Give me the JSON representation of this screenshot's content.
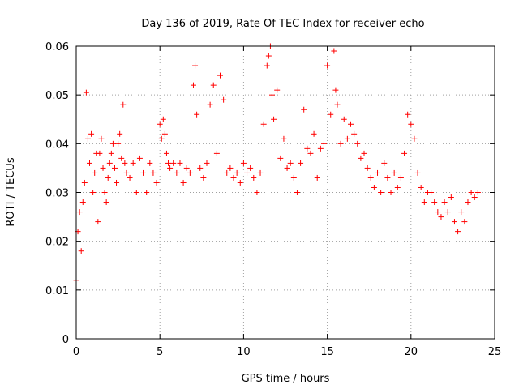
{
  "chart_data": {
    "type": "scatter",
    "title": "Day 136 of 2019, Rate Of TEC Index for receiver echo",
    "xlabel": "GPS time / hours",
    "ylabel": "ROTI / TECUs",
    "xlim": [
      0,
      25
    ],
    "ylim": [
      0,
      0.06
    ],
    "xticks": [
      "0",
      "5",
      "10",
      "15",
      "20",
      "25"
    ],
    "yticks": [
      "0",
      "0.01",
      "0.02",
      "0.03",
      "0.04",
      "0.05",
      "0.06"
    ],
    "grid": true,
    "marker": "+",
    "color": "#ff0000",
    "series": [
      {
        "name": "",
        "x": [
          0.0,
          0.1,
          0.2,
          0.3,
          0.4,
          0.5,
          0.6,
          0.7,
          0.8,
          0.9,
          1.0,
          1.1,
          1.2,
          1.3,
          1.4,
          1.5,
          1.6,
          1.7,
          1.8,
          1.9,
          2.0,
          2.1,
          2.2,
          2.3,
          2.4,
          2.5,
          2.6,
          2.7,
          2.8,
          2.9,
          3.0,
          3.2,
          3.4,
          3.6,
          3.8,
          4.0,
          4.2,
          4.4,
          4.6,
          4.8,
          5.0,
          5.1,
          5.2,
          5.3,
          5.4,
          5.5,
          5.6,
          5.8,
          6.0,
          6.2,
          6.4,
          6.6,
          6.8,
          7.0,
          7.1,
          7.2,
          7.4,
          7.6,
          7.8,
          8.0,
          8.2,
          8.4,
          8.6,
          8.8,
          9.0,
          9.2,
          9.4,
          9.6,
          9.8,
          10.0,
          10.2,
          10.4,
          10.6,
          10.8,
          11.0,
          11.2,
          11.4,
          11.5,
          11.6,
          11.7,
          11.8,
          12.0,
          12.2,
          12.4,
          12.6,
          12.8,
          13.0,
          13.2,
          13.4,
          13.6,
          13.8,
          14.0,
          14.2,
          14.4,
          14.6,
          14.8,
          15.0,
          15.2,
          15.4,
          15.5,
          15.6,
          15.8,
          16.0,
          16.2,
          16.4,
          16.6,
          16.8,
          17.0,
          17.2,
          17.4,
          17.6,
          17.8,
          18.0,
          18.2,
          18.4,
          18.6,
          18.8,
          19.0,
          19.2,
          19.4,
          19.6,
          19.8,
          20.0,
          20.2,
          20.4,
          20.6,
          20.8,
          21.0,
          21.2,
          21.4,
          21.6,
          21.8,
          22.0,
          22.2,
          22.4,
          22.6,
          22.8,
          23.0,
          23.2,
          23.4,
          23.6,
          23.8,
          24.0
        ],
        "y": [
          0.012,
          0.022,
          0.026,
          0.018,
          0.028,
          0.032,
          0.0505,
          0.041,
          0.036,
          0.042,
          0.03,
          0.034,
          0.038,
          0.024,
          0.038,
          0.041,
          0.035,
          0.03,
          0.028,
          0.033,
          0.036,
          0.038,
          0.04,
          0.035,
          0.032,
          0.04,
          0.042,
          0.037,
          0.048,
          0.036,
          0.034,
          0.033,
          0.036,
          0.03,
          0.037,
          0.034,
          0.03,
          0.036,
          0.034,
          0.032,
          0.044,
          0.041,
          0.045,
          0.042,
          0.038,
          0.036,
          0.035,
          0.036,
          0.034,
          0.036,
          0.032,
          0.035,
          0.034,
          0.052,
          0.056,
          0.046,
          0.035,
          0.033,
          0.036,
          0.048,
          0.052,
          0.038,
          0.054,
          0.049,
          0.034,
          0.035,
          0.033,
          0.034,
          0.032,
          0.036,
          0.034,
          0.035,
          0.033,
          0.03,
          0.034,
          0.044,
          0.056,
          0.058,
          0.06,
          0.05,
          0.045,
          0.051,
          0.037,
          0.041,
          0.035,
          0.036,
          0.033,
          0.03,
          0.036,
          0.047,
          0.039,
          0.038,
          0.042,
          0.033,
          0.039,
          0.04,
          0.056,
          0.046,
          0.059,
          0.051,
          0.048,
          0.04,
          0.045,
          0.041,
          0.044,
          0.042,
          0.04,
          0.037,
          0.038,
          0.035,
          0.033,
          0.031,
          0.034,
          0.03,
          0.036,
          0.033,
          0.03,
          0.034,
          0.031,
          0.033,
          0.038,
          0.046,
          0.044,
          0.041,
          0.034,
          0.031,
          0.028,
          0.03,
          0.03,
          0.028,
          0.026,
          0.025,
          0.028,
          0.026,
          0.029,
          0.024,
          0.022,
          0.026,
          0.024,
          0.028,
          0.03,
          0.029,
          0.03
        ]
      }
    ]
  }
}
